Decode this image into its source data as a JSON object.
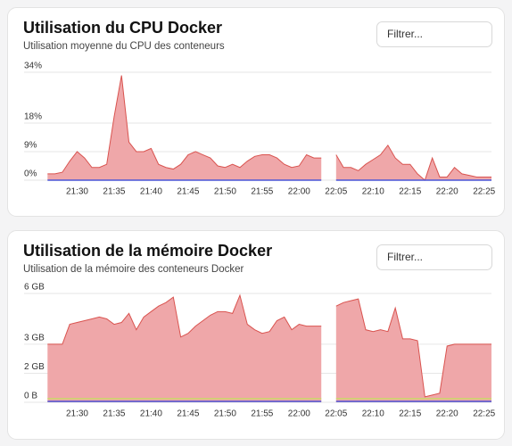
{
  "chart_data": [
    {
      "type": "area",
      "title": "Utilisation du CPU Docker",
      "subtitle": "Utilisation moyenne du CPU des conteneurs",
      "filter_placeholder": "Filtrer...",
      "x": [
        "21:26",
        "21:27",
        "21:28",
        "21:29",
        "21:30",
        "21:31",
        "21:32",
        "21:33",
        "21:34",
        "21:35",
        "21:36",
        "21:37",
        "21:38",
        "21:39",
        "21:40",
        "21:41",
        "21:42",
        "21:43",
        "21:44",
        "21:45",
        "21:46",
        "21:47",
        "21:48",
        "21:49",
        "21:50",
        "21:51",
        "21:52",
        "21:53",
        "21:54",
        "21:55",
        "21:56",
        "21:57",
        "21:58",
        "21:59",
        "22:00",
        "22:01",
        "22:02",
        "22:03",
        "22:04",
        "22:05",
        "22:06",
        "22:07",
        "22:08",
        "22:09",
        "22:10",
        "22:11",
        "22:12",
        "22:13",
        "22:14",
        "22:15",
        "22:16",
        "22:17",
        "22:18",
        "22:19",
        "22:20",
        "22:21",
        "22:22",
        "22:23",
        "22:24",
        "22:25",
        "22:26"
      ],
      "series": [
        {
          "color": "#d9534f",
          "fill": "#efa7a9",
          "area": true,
          "values": [
            2,
            2,
            2.5,
            6,
            9,
            7,
            4,
            4,
            5,
            20,
            33,
            12,
            9,
            9,
            10,
            5,
            4,
            3.5,
            5,
            8,
            9,
            8,
            7,
            4.5,
            4,
            5,
            4,
            6,
            7.5,
            8,
            8,
            7,
            5,
            4,
            4.5,
            8,
            7,
            7,
            null,
            8,
            4,
            4,
            3,
            5,
            6.5,
            8,
            11,
            7,
            5,
            5,
            2,
            0,
            7,
            1,
            1,
            4,
            2,
            1.5,
            1,
            1,
            1
          ]
        },
        {
          "color": "#4a56d8",
          "area": false,
          "values": [
            0,
            0,
            0,
            0,
            0,
            0,
            0,
            0,
            0,
            0,
            0,
            0,
            0,
            0,
            0,
            0,
            0,
            0,
            0,
            0,
            0,
            0,
            0,
            0,
            0,
            0,
            0,
            0,
            0,
            0,
            0,
            0,
            0,
            0,
            0,
            0,
            0,
            0,
            null,
            0,
            0,
            0,
            0,
            0,
            0,
            0,
            0,
            0,
            0,
            0,
            0,
            0,
            0,
            0,
            0,
            0,
            0,
            0,
            0,
            0,
            0
          ]
        }
      ],
      "xlim": [
        "21:25",
        "22:26"
      ],
      "xticks": [
        "21:30",
        "21:35",
        "21:40",
        "21:45",
        "21:50",
        "21:55",
        "22:00",
        "22:05",
        "22:10",
        "22:15",
        "22:20",
        "22:25"
      ],
      "ylim": [
        0,
        34
      ],
      "yticks": [
        {
          "value": 0,
          "label": "0%"
        },
        {
          "value": 9,
          "label": "9%"
        },
        {
          "value": 18,
          "label": "18%"
        },
        {
          "value": 34,
          "label": "34%"
        }
      ],
      "grid": true
    },
    {
      "type": "area",
      "title": "Utilisation de la mémoire Docker",
      "subtitle": "Utilisation de la mémoire des conteneurs Docker",
      "filter_placeholder": "Filtrer...",
      "x": [
        "21:26",
        "21:27",
        "21:28",
        "21:29",
        "21:30",
        "21:31",
        "21:32",
        "21:33",
        "21:34",
        "21:35",
        "21:36",
        "21:37",
        "21:38",
        "21:39",
        "21:40",
        "21:41",
        "21:42",
        "21:43",
        "21:44",
        "21:45",
        "21:46",
        "21:47",
        "21:48",
        "21:49",
        "21:50",
        "21:51",
        "21:52",
        "21:53",
        "21:54",
        "21:55",
        "21:56",
        "21:57",
        "21:58",
        "21:59",
        "22:00",
        "22:01",
        "22:02",
        "22:03",
        "22:04",
        "22:05",
        "22:06",
        "22:07",
        "22:08",
        "22:09",
        "22:10",
        "22:11",
        "22:12",
        "22:13",
        "22:14",
        "22:15",
        "22:16",
        "22:17",
        "22:18",
        "22:19",
        "22:20",
        "22:21",
        "22:22",
        "22:23",
        "22:24",
        "22:25",
        "22:26"
      ],
      "series": [
        {
          "color": "#d9534f",
          "fill": "#efa7a9",
          "area": true,
          "values": [
            3.2,
            3.2,
            3.2,
            4.3,
            4.4,
            4.5,
            4.6,
            4.7,
            4.6,
            4.3,
            4.4,
            4.9,
            4.0,
            4.7,
            5.0,
            5.3,
            5.5,
            5.8,
            3.6,
            3.8,
            4.2,
            4.5,
            4.8,
            5.0,
            5.0,
            4.9,
            5.9,
            4.3,
            4.0,
            3.8,
            3.9,
            4.5,
            4.7,
            4.0,
            4.3,
            4.2,
            4.2,
            4.2,
            null,
            5.3,
            5.5,
            5.6,
            5.7,
            4.0,
            3.9,
            4.0,
            3.9,
            5.2,
            3.5,
            3.5,
            3.4,
            0.3,
            0.4,
            0.5,
            3.1,
            3.2,
            3.2,
            3.2,
            3.2,
            3.2,
            3.2
          ]
        },
        {
          "color": "#c9d96a",
          "area": false,
          "values": [
            0.2,
            0.2,
            0.2,
            0.2,
            0.2,
            0.2,
            0.2,
            0.2,
            0.2,
            0.2,
            0.2,
            0.2,
            0.2,
            0.2,
            0.2,
            0.2,
            0.2,
            0.2,
            0.2,
            0.2,
            0.2,
            0.2,
            0.2,
            0.2,
            0.2,
            0.2,
            0.2,
            0.2,
            0.2,
            0.2,
            0.2,
            0.2,
            0.2,
            0.2,
            0.2,
            0.2,
            0.2,
            0.2,
            null,
            0.2,
            0.2,
            0.2,
            0.2,
            0.2,
            0.2,
            0.2,
            0.2,
            0.2,
            0.2,
            0.2,
            0.2,
            0.2,
            0.2,
            0.2,
            0.2,
            0.2,
            0.2,
            0.2,
            0.2,
            0.2,
            0.2
          ]
        },
        {
          "color": "#4a56d8",
          "area": false,
          "values": [
            0.05,
            0.05,
            0.05,
            0.05,
            0.05,
            0.05,
            0.05,
            0.05,
            0.05,
            0.05,
            0.05,
            0.05,
            0.05,
            0.05,
            0.05,
            0.05,
            0.05,
            0.05,
            0.05,
            0.05,
            0.05,
            0.05,
            0.05,
            0.05,
            0.05,
            0.05,
            0.05,
            0.05,
            0.05,
            0.05,
            0.05,
            0.05,
            0.05,
            0.05,
            0.05,
            0.05,
            0.05,
            0.05,
            null,
            0.05,
            0.05,
            0.05,
            0.05,
            0.05,
            0.05,
            0.05,
            0.05,
            0.05,
            0.05,
            0.05,
            0.05,
            0.05,
            0.05,
            0.05,
            0.05,
            0.05,
            0.05,
            0.05,
            0.05,
            0.05,
            0.05
          ]
        }
      ],
      "xlim": [
        "21:25",
        "22:26"
      ],
      "xticks": [
        "21:30",
        "21:35",
        "21:40",
        "21:45",
        "21:50",
        "21:55",
        "22:00",
        "22:05",
        "22:10",
        "22:15",
        "22:20",
        "22:25"
      ],
      "ylim": [
        0,
        6
      ],
      "yticks": [
        {
          "value": 0,
          "label": "0 B"
        },
        {
          "value": 1.6,
          "label": "2 GB"
        },
        {
          "value": 3.2,
          "label": "3 GB"
        },
        {
          "value": 6,
          "label": "6 GB"
        }
      ],
      "grid": true
    }
  ]
}
